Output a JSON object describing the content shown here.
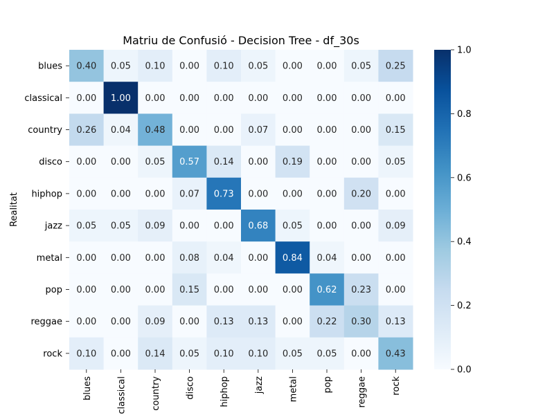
{
  "chart_data": {
    "type": "heatmap",
    "title": "Matriu de Confusió - Decision Tree - df_30s",
    "xlabel": "",
    "ylabel": "Realitat",
    "x_categories": [
      "blues",
      "classical",
      "country",
      "disco",
      "hiphop",
      "jazz",
      "metal",
      "pop",
      "reggae",
      "rock"
    ],
    "y_categories": [
      "blues",
      "classical",
      "country",
      "disco",
      "hiphop",
      "jazz",
      "metal",
      "pop",
      "reggae",
      "rock"
    ],
    "values": [
      [
        0.4,
        0.05,
        0.1,
        0.0,
        0.1,
        0.05,
        0.0,
        0.0,
        0.05,
        0.25
      ],
      [
        0.0,
        1.0,
        0.0,
        0.0,
        0.0,
        0.0,
        0.0,
        0.0,
        0.0,
        0.0
      ],
      [
        0.26,
        0.04,
        0.48,
        0.0,
        0.0,
        0.07,
        0.0,
        0.0,
        0.0,
        0.15
      ],
      [
        0.0,
        0.0,
        0.05,
        0.57,
        0.14,
        0.0,
        0.19,
        0.0,
        0.0,
        0.05
      ],
      [
        0.0,
        0.0,
        0.0,
        0.07,
        0.73,
        0.0,
        0.0,
        0.0,
        0.2,
        0.0
      ],
      [
        0.05,
        0.05,
        0.09,
        0.0,
        0.0,
        0.68,
        0.05,
        0.0,
        0.0,
        0.09
      ],
      [
        0.0,
        0.0,
        0.0,
        0.08,
        0.04,
        0.0,
        0.84,
        0.04,
        0.0,
        0.0
      ],
      [
        0.0,
        0.0,
        0.0,
        0.15,
        0.0,
        0.0,
        0.0,
        0.62,
        0.23,
        0.0
      ],
      [
        0.0,
        0.0,
        0.09,
        0.0,
        0.13,
        0.13,
        0.0,
        0.22,
        0.3,
        0.13
      ],
      [
        0.1,
        0.0,
        0.14,
        0.05,
        0.1,
        0.1,
        0.05,
        0.05,
        0.0,
        0.43
      ]
    ],
    "value_range": [
      0.0,
      1.0
    ],
    "colormap": "Blues",
    "colormap_low": "#f7fbff",
    "colormap_high": "#08306b",
    "colorbar_ticks": [
      "0.0",
      "0.2",
      "0.4",
      "0.6",
      "0.8",
      "1.0"
    ],
    "annotation_format": "2 decimals",
    "text_color_dark": "#262626",
    "text_color_light": "#ffffff"
  }
}
